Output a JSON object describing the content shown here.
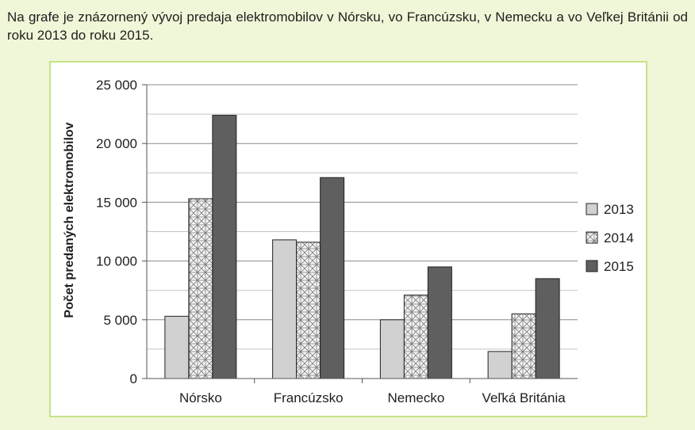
{
  "intro_text": "Na grafe je znázornený vývoj predaja elektromobilov v Nórsku, vo Francúzsku, v Nemecku a vo Veľkej Británii od roku 2013 do roku 2015.",
  "chart_data": {
    "type": "bar",
    "title": "",
    "xlabel": "",
    "ylabel": "Počet predaných elektromobilov",
    "categories": [
      "Nórsko",
      "Francúzsko",
      "Nemecko",
      "Veľká Británia"
    ],
    "series": [
      {
        "name": "2013",
        "values": [
          5300,
          11800,
          5000,
          2300
        ],
        "color": "#d1d1d1",
        "pattern": "solid"
      },
      {
        "name": "2014",
        "values": [
          15300,
          11600,
          7100,
          5500
        ],
        "color": "#f2f2f2",
        "pattern": "lattice"
      },
      {
        "name": "2015",
        "values": [
          22400,
          17100,
          9500,
          8500
        ],
        "color": "#5f5f5f",
        "pattern": "solid"
      }
    ],
    "ylim": [
      0,
      25000
    ],
    "yticks": [
      0,
      5000,
      10000,
      15000,
      20000,
      25000
    ],
    "ytick_labels": [
      "0",
      "5 000",
      "10 000",
      "15 000",
      "20 000",
      "25 000"
    ],
    "grid": true,
    "legend_position": "right"
  }
}
